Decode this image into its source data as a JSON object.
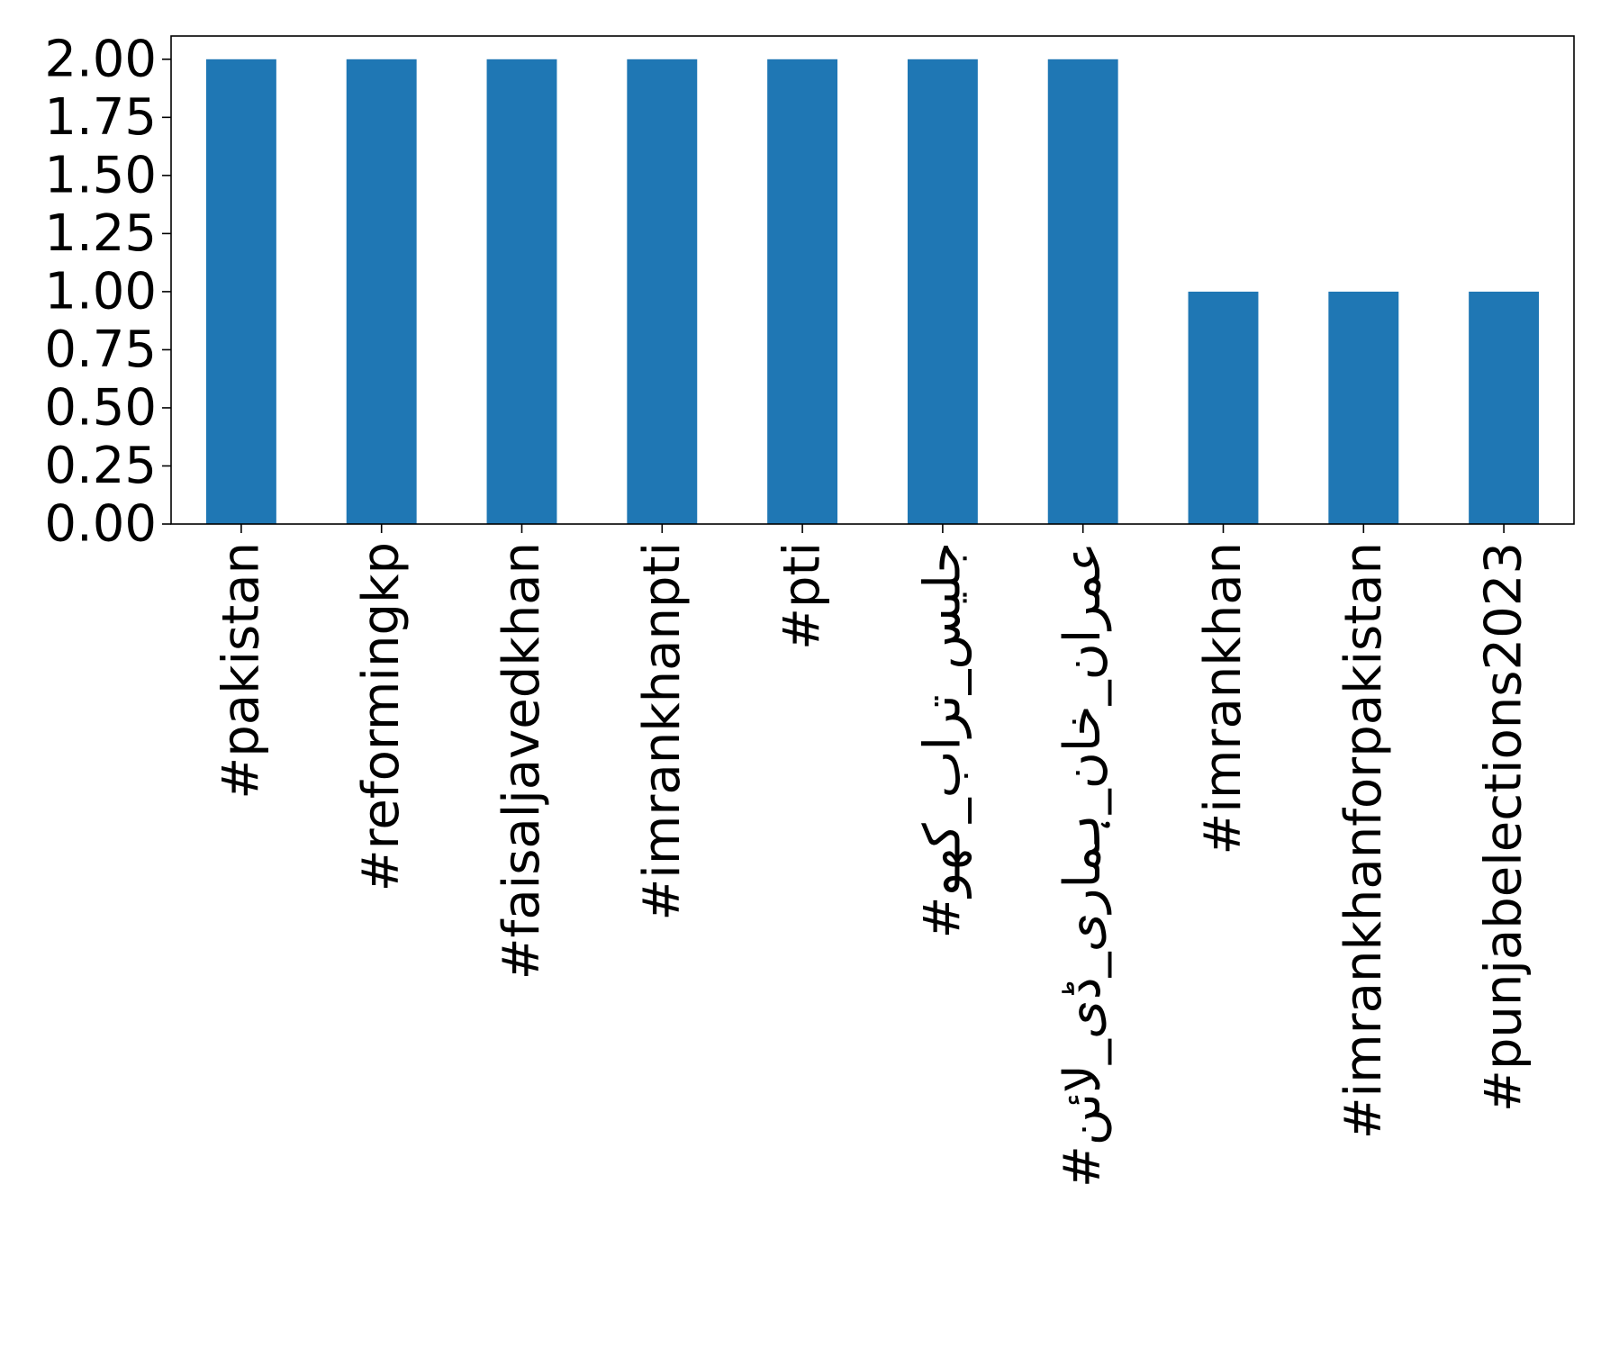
{
  "chart_data": {
    "type": "bar",
    "title": "",
    "xlabel": "",
    "ylabel": "",
    "categories": [
      "#pakistan",
      "#reformingkp",
      "#faisaljavedkhan",
      "#imrankhanpti",
      "#pti",
      "#جلیس_تراب_کھو",
      "#عمران_خان_ہماری_ڈی_لائن",
      "#imrankhan",
      "#imrankhanforpakistan",
      "#punjabelections2023"
    ],
    "values": [
      2,
      2,
      2,
      2,
      2,
      2,
      2,
      1,
      1,
      1
    ],
    "ylim": [
      0,
      2.1
    ],
    "yticks": [
      "0.00",
      "0.25",
      "0.50",
      "0.75",
      "1.00",
      "1.25",
      "1.50",
      "1.75",
      "2.00"
    ],
    "grid": false,
    "legend": "none",
    "bar_color": "#1f77b4"
  }
}
